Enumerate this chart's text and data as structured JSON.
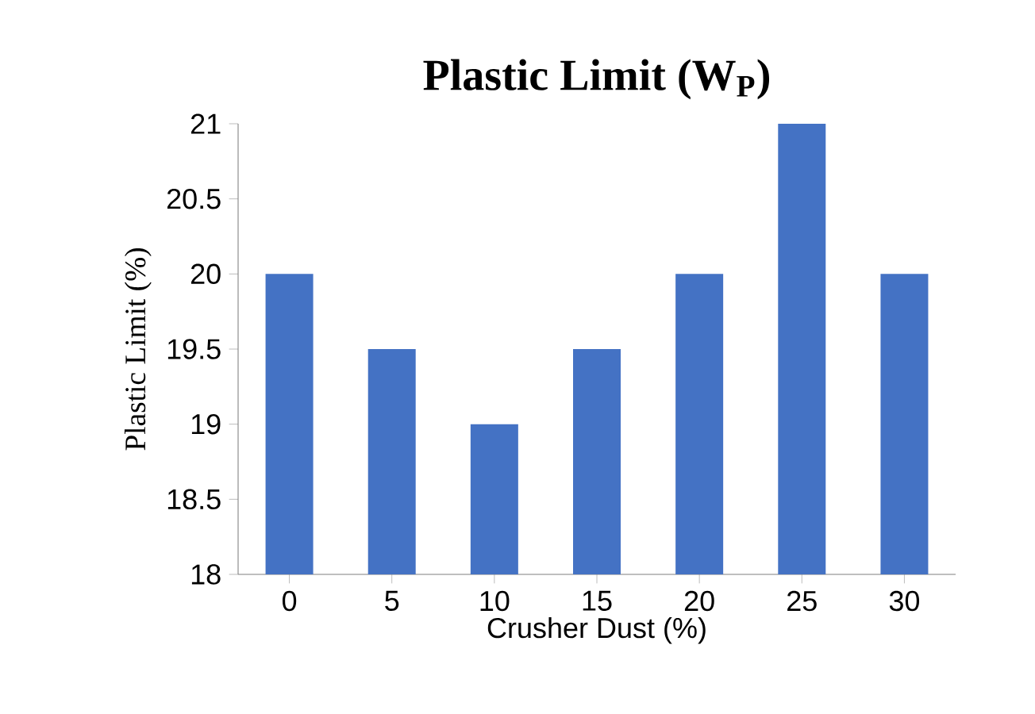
{
  "chart_data": {
    "type": "bar",
    "title": "Plastic Limit (W$_{P}$)",
    "xlabel": "Crusher Dust (%)",
    "ylabel": "Plastic Limit (%)",
    "categories": [
      "0",
      "5",
      "10",
      "15",
      "20",
      "25",
      "30"
    ],
    "values": [
      20,
      19.5,
      19,
      19.5,
      20,
      21,
      20
    ],
    "color": "#4472c4",
    "ylim": [
      18,
      21
    ],
    "yticks": [
      18,
      18.5,
      19,
      19.5,
      20,
      20.5,
      21
    ],
    "grid": false
  }
}
